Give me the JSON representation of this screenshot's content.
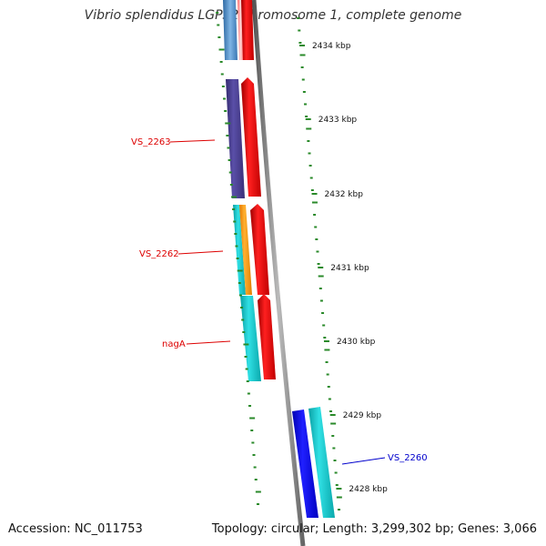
{
  "title": "Vibrio splendidus LGP32 chromosome 1, complete genome",
  "accession": "Accession: NC_011753",
  "topology": "Topology: circular; Length: 3,299,302 bp; Genes: 3,066",
  "colors": {
    "backbone": "#888888",
    "tick": "#2a8a2a",
    "forward_gene": "#ee0000",
    "orange_gene": "#ff9900",
    "cyan_gene": "#16c8cc",
    "blue_gene": "#1010ee",
    "purple_gene": "#4a3f8e",
    "steel_gene": "#4a86c0",
    "label_red": "#dd0000",
    "label_blue": "#0000cc"
  },
  "scale": {
    "labels": [
      "2434 kbp",
      "2433 kbp",
      "2432 kbp",
      "2431 kbp",
      "2430 kbp",
      "2429 kbp",
      "2428 kbp"
    ]
  },
  "gene_labels": [
    {
      "text": "VS_2263",
      "color": "#dd0000"
    },
    {
      "text": "VS_2262",
      "color": "#dd0000"
    },
    {
      "text": "nagA",
      "color": "#dd0000"
    },
    {
      "text": "VS_2260",
      "color": "#0000cc"
    }
  ]
}
